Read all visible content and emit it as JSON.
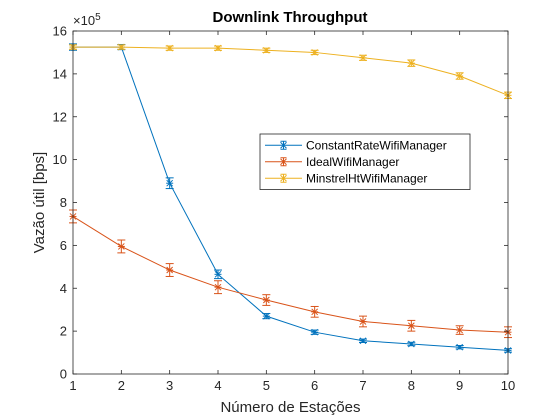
{
  "chart_data": {
    "type": "line",
    "title": "Downlink Throughput",
    "xlabel": "Número de Estações",
    "ylabel": "Vazão útil [bps]",
    "y_exponent_label": "×10",
    "y_exponent_power": "5",
    "y_multiplier": 100000,
    "x": [
      1,
      2,
      3,
      4,
      5,
      6,
      7,
      8,
      9,
      10
    ],
    "xlim": [
      1,
      10
    ],
    "ylim": [
      0,
      16
    ],
    "x_ticks": [
      1,
      2,
      3,
      4,
      5,
      6,
      7,
      8,
      9,
      10
    ],
    "y_ticks": [
      0,
      2,
      4,
      6,
      8,
      10,
      12,
      14,
      16
    ],
    "grid": false,
    "legend_position": "center-right",
    "series": [
      {
        "name": "ConstantRateWifiManager",
        "color": "#0072BD",
        "values": [
          15.25,
          15.25,
          8.9,
          4.65,
          2.7,
          1.95,
          1.55,
          1.4,
          1.25,
          1.1
        ],
        "errors": [
          0.15,
          0.12,
          0.25,
          0.2,
          0.12,
          0.1,
          0.08,
          0.08,
          0.08,
          0.08
        ]
      },
      {
        "name": "IdealWifiManager",
        "color": "#D95319",
        "values": [
          7.35,
          5.95,
          4.85,
          4.05,
          3.45,
          2.9,
          2.45,
          2.25,
          2.05,
          1.95
        ],
        "errors": [
          0.3,
          0.3,
          0.3,
          0.3,
          0.25,
          0.25,
          0.25,
          0.25,
          0.2,
          0.25
        ]
      },
      {
        "name": "MinstrelHtWifiManager",
        "color": "#EDB120",
        "values": [
          15.25,
          15.25,
          15.2,
          15.2,
          15.1,
          15.0,
          14.75,
          14.5,
          13.9,
          13.0
        ],
        "errors": [
          0.1,
          0.1,
          0.1,
          0.1,
          0.1,
          0.1,
          0.12,
          0.15,
          0.15,
          0.15
        ]
      }
    ]
  }
}
